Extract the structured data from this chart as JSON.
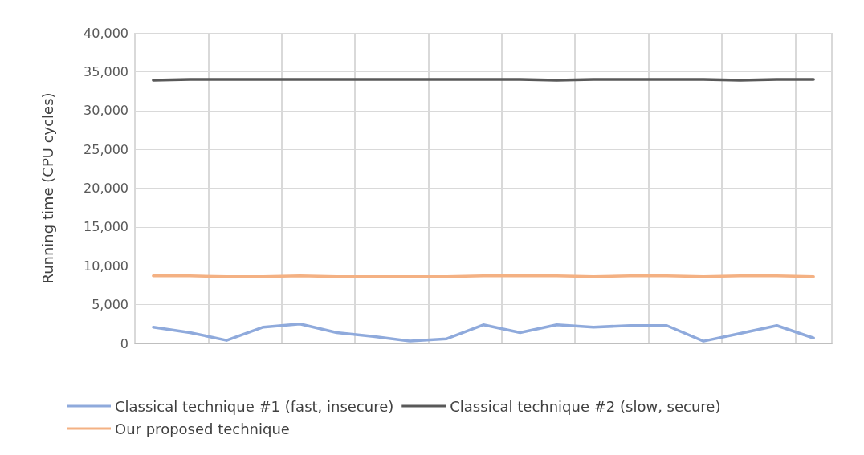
{
  "chart_data": {
    "type": "line",
    "ylabel": "Running time (CPU cycles)",
    "categories": [
      null,
      null,
      null,
      null,
      null,
      null,
      null,
      null,
      null,
      null,
      null,
      null,
      null,
      null,
      null,
      null,
      null,
      null,
      null
    ],
    "series": [
      {
        "name": "Classical technique #1 (fast, insecure)",
        "color": "#8faadc",
        "values": [
          2100,
          1400,
          400,
          2100,
          2500,
          1400,
          900,
          300,
          600,
          2400,
          1400,
          2400,
          2100,
          2300,
          2300,
          300,
          1300,
          2300,
          700
        ]
      },
      {
        "name": "Classical technique #2 (slow, secure)",
        "color": "#595959",
        "values": [
          33900,
          34000,
          34000,
          34000,
          34000,
          34000,
          34000,
          34000,
          34000,
          34000,
          34000,
          33900,
          34000,
          34000,
          34000,
          34000,
          33900,
          34000,
          34000
        ]
      },
      {
        "name": "Our proposed technique",
        "color": "#f4b183",
        "values": [
          8700,
          8700,
          8600,
          8600,
          8700,
          8600,
          8600,
          8600,
          8600,
          8700,
          8700,
          8700,
          8600,
          8700,
          8700,
          8600,
          8700,
          8700,
          8600
        ]
      }
    ],
    "ylim": [
      0,
      40000
    ],
    "yticks": [
      0,
      {
        "value": 5000,
        "label": "5,000"
      },
      {
        "value": 10000,
        "label": "10,000"
      },
      {
        "value": 15000,
        "label": "15,000"
      },
      {
        "value": 20000,
        "label": "20,000"
      },
      {
        "value": 25000,
        "label": "25,000"
      },
      {
        "value": 30000,
        "label": "30,000"
      },
      {
        "value": 35000,
        "label": "35,000"
      },
      {
        "value": 40000,
        "label": "40,000"
      }
    ],
    "grid": true,
    "legend": "bottom",
    "marker": "none",
    "line_style": "solid"
  }
}
